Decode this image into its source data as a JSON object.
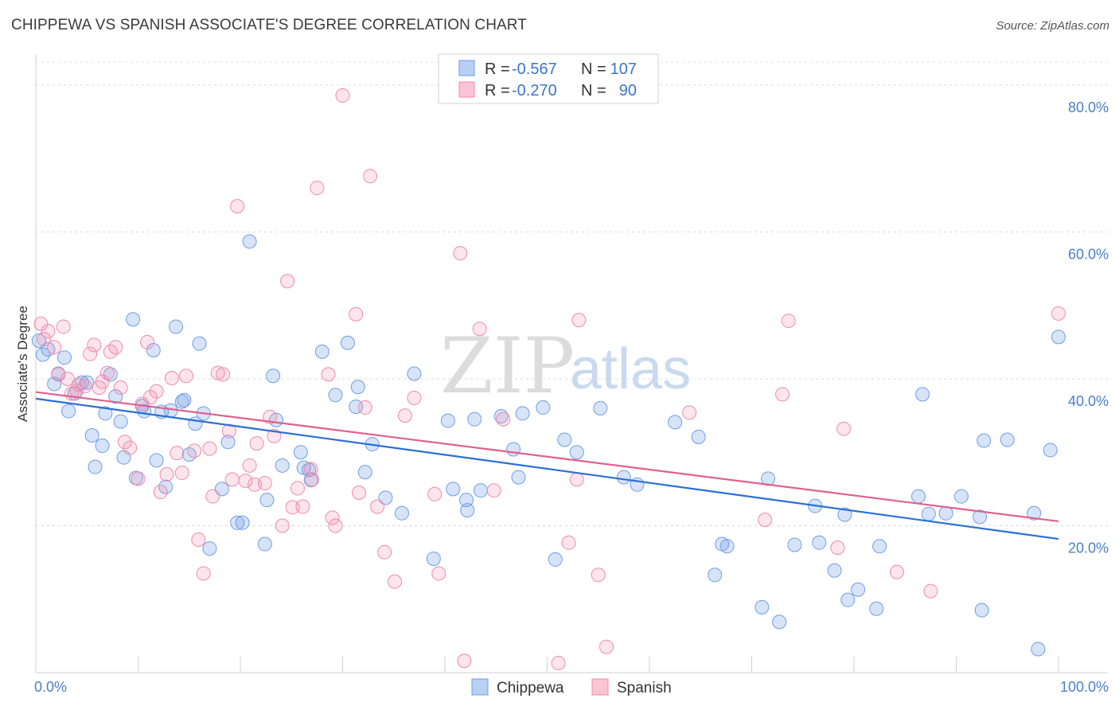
{
  "title": "CHIPPEWA VS SPANISH ASSOCIATE'S DEGREE CORRELATION CHART",
  "source": "Source: ZipAtlas.com",
  "watermark": {
    "zip": "ZIP",
    "atlas": "atlas"
  },
  "legend": {
    "rows": [
      {
        "r_label": "R =",
        "r_value": "-0.567",
        "n_label": "N =",
        "n_value": "107"
      },
      {
        "r_label": "R =",
        "r_value": "-0.270",
        "n_label": "N =",
        "n_value": "90"
      }
    ]
  },
  "chart_data": {
    "type": "scatter",
    "title": "CHIPPEWA VS SPANISH ASSOCIATE'S DEGREE CORRELATION CHART",
    "xlabel": "",
    "ylabel": "Associate's Degree",
    "xlim": [
      0,
      100
    ],
    "ylim": [
      0,
      84
    ],
    "x_tick_labels": [
      "0.0%",
      "100.0%"
    ],
    "y_ticks": [
      20,
      40,
      60,
      80
    ],
    "y_tick_labels": [
      "20.0%",
      "40.0%",
      "60.0%",
      "80.0%"
    ],
    "grid": "horizontal dashed",
    "legend_position": "top-center",
    "colors": {
      "Chippewa": "#6e9ee6",
      "Spanish": "#f08aac",
      "Chippewa_line": "#2a6fd6",
      "Spanish_line": "#e0608e"
    },
    "series": [
      {
        "name": "Chippewa",
        "R": -0.567,
        "N": 107,
        "trend": {
          "x": [
            0,
            100
          ],
          "y": [
            37.3,
            18.2
          ]
        },
        "points": [
          [
            0.3,
            45.2
          ],
          [
            0.7,
            43.3
          ],
          [
            1.2,
            44
          ],
          [
            1.8,
            39.3
          ],
          [
            2.2,
            40.7
          ],
          [
            2.8,
            42.9
          ],
          [
            3.2,
            35.6
          ],
          [
            3.8,
            38
          ],
          [
            4.5,
            39.5
          ],
          [
            5,
            39.5
          ],
          [
            5.5,
            32.3
          ],
          [
            5.8,
            28
          ],
          [
            6.5,
            30.9
          ],
          [
            6.8,
            35.3
          ],
          [
            7.3,
            40.6
          ],
          [
            7.8,
            37.6
          ],
          [
            8.3,
            34.2
          ],
          [
            8.6,
            29.3
          ],
          [
            9.5,
            48.1
          ],
          [
            9.8,
            26.5
          ],
          [
            10.4,
            36.3
          ],
          [
            10.6,
            35.6
          ],
          [
            11.5,
            43.9
          ],
          [
            11.8,
            28.9
          ],
          [
            12.3,
            35.5
          ],
          [
            12.7,
            25.3
          ],
          [
            13.2,
            35.7
          ],
          [
            13.7,
            47.1
          ],
          [
            14.3,
            36.9
          ],
          [
            14.5,
            37.1
          ],
          [
            15,
            29.7
          ],
          [
            15.6,
            33.9
          ],
          [
            16,
            44.8
          ],
          [
            16.4,
            35.3
          ],
          [
            17,
            16.9
          ],
          [
            18.2,
            25
          ],
          [
            18.8,
            31.4
          ],
          [
            19.7,
            20.4
          ],
          [
            20.2,
            20.4
          ],
          [
            20.9,
            58.7
          ],
          [
            22.4,
            17.5
          ],
          [
            22.6,
            23.5
          ],
          [
            23.2,
            40.4
          ],
          [
            23.5,
            34.4
          ],
          [
            24.1,
            28.2
          ],
          [
            25.9,
            30
          ],
          [
            26.2,
            27.9
          ],
          [
            26.7,
            27.6
          ],
          [
            26.9,
            26.2
          ],
          [
            28,
            43.7
          ],
          [
            29.3,
            37.8
          ],
          [
            30.5,
            44.9
          ],
          [
            31.3,
            36.2
          ],
          [
            31.5,
            38.9
          ],
          [
            32.2,
            27.3
          ],
          [
            32.9,
            31.1
          ],
          [
            34.2,
            23.8
          ],
          [
            35.8,
            21.7
          ],
          [
            37,
            40.7
          ],
          [
            38.9,
            15.5
          ],
          [
            40.3,
            34.3
          ],
          [
            40.8,
            25
          ],
          [
            42.1,
            23.5
          ],
          [
            42.2,
            22.1
          ],
          [
            42.9,
            34.5
          ],
          [
            43.5,
            24.8
          ],
          [
            45.5,
            34.9
          ],
          [
            46.7,
            30.4
          ],
          [
            47.2,
            26.6
          ],
          [
            47.6,
            35.3
          ],
          [
            49.6,
            36.1
          ],
          [
            50.8,
            15.4
          ],
          [
            51.7,
            31.7
          ],
          [
            52.9,
            30
          ],
          [
            55.2,
            36
          ],
          [
            57.5,
            26.6
          ],
          [
            58.8,
            25.6
          ],
          [
            62.5,
            34.1
          ],
          [
            64.8,
            32.1
          ],
          [
            66.4,
            13.3
          ],
          [
            67.1,
            17.5
          ],
          [
            67.6,
            17.2
          ],
          [
            71,
            8.9
          ],
          [
            71.6,
            26.4
          ],
          [
            72.7,
            6.9
          ],
          [
            74.2,
            17.4
          ],
          [
            76.2,
            22.7
          ],
          [
            76.6,
            17.7
          ],
          [
            78.1,
            13.9
          ],
          [
            79.1,
            21.5
          ],
          [
            79.4,
            9.9
          ],
          [
            80.4,
            11.3
          ],
          [
            82.2,
            8.7
          ],
          [
            82.5,
            17.2
          ],
          [
            86.3,
            24
          ],
          [
            86.7,
            37.9
          ],
          [
            87.3,
            21.6
          ],
          [
            89,
            21.7
          ],
          [
            90.5,
            24
          ],
          [
            92.3,
            21.2
          ],
          [
            92.5,
            8.5
          ],
          [
            92.7,
            31.6
          ],
          [
            95,
            31.7
          ],
          [
            97.6,
            21.7
          ],
          [
            98,
            3.2
          ],
          [
            99.2,
            30.3
          ],
          [
            100,
            45.7
          ]
        ]
      },
      {
        "name": "Spanish",
        "R": -0.27,
        "N": 90,
        "trend": {
          "x": [
            0,
            100
          ],
          "y": [
            38.2,
            20.6
          ]
        },
        "points": [
          [
            0.5,
            47.5
          ],
          [
            0.8,
            45.4
          ],
          [
            1.2,
            46.5
          ],
          [
            1.8,
            44.3
          ],
          [
            2.2,
            40.6
          ],
          [
            2.7,
            47.1
          ],
          [
            3.1,
            40
          ],
          [
            3.5,
            38
          ],
          [
            4,
            38.4
          ],
          [
            4.2,
            39.2
          ],
          [
            4.8,
            39
          ],
          [
            5.3,
            43.4
          ],
          [
            5.7,
            44.6
          ],
          [
            6.2,
            38.8
          ],
          [
            6.5,
            39.6
          ],
          [
            7,
            40.8
          ],
          [
            7.3,
            43.7
          ],
          [
            7.8,
            44.3
          ],
          [
            8.3,
            38.8
          ],
          [
            8.7,
            31.4
          ],
          [
            9.2,
            30.6
          ],
          [
            10,
            26.4
          ],
          [
            10.4,
            36.6
          ],
          [
            10.9,
            45
          ],
          [
            11.2,
            37.5
          ],
          [
            11.8,
            38.3
          ],
          [
            12.2,
            24.6
          ],
          [
            12.8,
            27
          ],
          [
            13.3,
            40.1
          ],
          [
            13.8,
            29.9
          ],
          [
            14.3,
            27.2
          ],
          [
            14.7,
            40.4
          ],
          [
            15.5,
            30.2
          ],
          [
            15.9,
            18.1
          ],
          [
            16.4,
            13.5
          ],
          [
            17,
            30.5
          ],
          [
            17.3,
            24
          ],
          [
            17.8,
            40.8
          ],
          [
            18.3,
            40.6
          ],
          [
            18.9,
            32.9
          ],
          [
            19.2,
            26.3
          ],
          [
            19.7,
            63.5
          ],
          [
            20.5,
            26.1
          ],
          [
            20.9,
            28.2
          ],
          [
            21.4,
            25.6
          ],
          [
            21.6,
            31.2
          ],
          [
            22.4,
            25.8
          ],
          [
            22.9,
            34.8
          ],
          [
            23.3,
            32.2
          ],
          [
            24.1,
            20
          ],
          [
            24.6,
            53.3
          ],
          [
            25.1,
            22.5
          ],
          [
            25.6,
            25.1
          ],
          [
            26.1,
            22.6
          ],
          [
            26.9,
            27.7
          ],
          [
            27,
            26.3
          ],
          [
            27.5,
            66
          ],
          [
            28.6,
            40.6
          ],
          [
            29,
            21.1
          ],
          [
            29.3,
            20
          ],
          [
            30,
            78.6
          ],
          [
            31.3,
            48.8
          ],
          [
            31.6,
            24.5
          ],
          [
            32.2,
            36.1
          ],
          [
            32.7,
            67.6
          ],
          [
            33.4,
            22.6
          ],
          [
            34.1,
            16.4
          ],
          [
            35.1,
            12.4
          ],
          [
            36.1,
            35
          ],
          [
            37,
            37.4
          ],
          [
            39,
            24.3
          ],
          [
            39.4,
            13.5
          ],
          [
            41.5,
            57.1
          ],
          [
            41.9,
            1.6
          ],
          [
            43.4,
            46.8
          ],
          [
            44.8,
            24.8
          ],
          [
            45.7,
            34.5
          ],
          [
            51.1,
            1.3
          ],
          [
            52.1,
            17.7
          ],
          [
            52.9,
            26.3
          ],
          [
            53.1,
            48
          ],
          [
            55,
            13.3
          ],
          [
            55.8,
            3.5
          ],
          [
            63.9,
            35.4
          ],
          [
            71.3,
            20.8
          ],
          [
            73,
            37.9
          ],
          [
            73.6,
            47.9
          ],
          [
            79,
            33.2
          ],
          [
            78.4,
            17
          ],
          [
            84.2,
            13.7
          ],
          [
            87.5,
            11.1
          ],
          [
            100,
            48.9
          ]
        ]
      }
    ]
  },
  "bottom_legend": [
    {
      "label": "Chippewa"
    },
    {
      "label": "Spanish"
    }
  ]
}
